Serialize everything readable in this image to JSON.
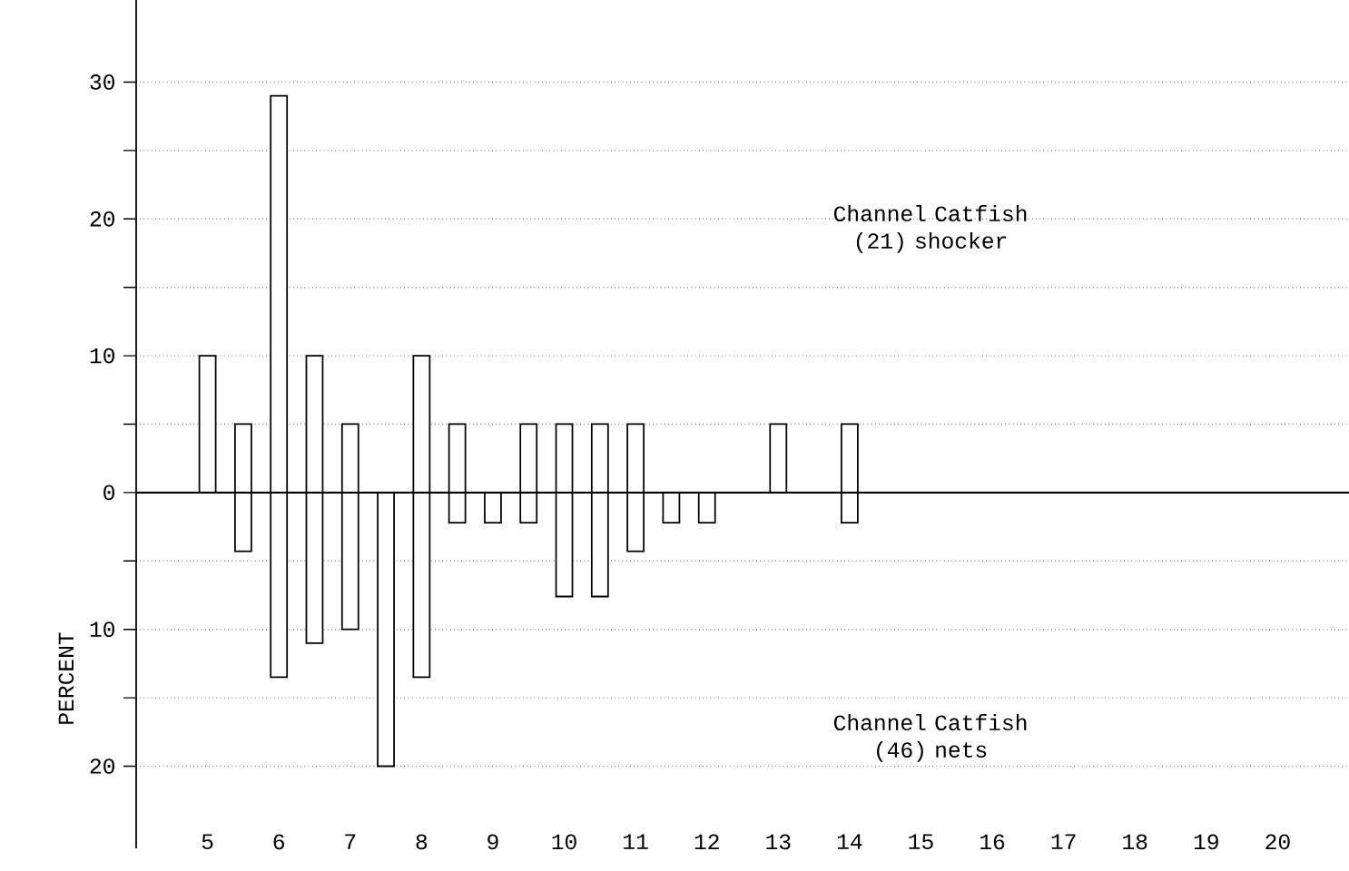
{
  "chart_data": {
    "type": "bar",
    "ylabel": "PERCENT",
    "xlim": [
      4,
      21
    ],
    "xticks": [
      5,
      6,
      7,
      8,
      9,
      10,
      11,
      12,
      13,
      14,
      15,
      16,
      17,
      18,
      19,
      20
    ],
    "ylim": [
      -26,
      36
    ],
    "yticks": [
      {
        "value": -20,
        "label": "20"
      },
      {
        "value": -15,
        "label": null
      },
      {
        "value": -10,
        "label": "10"
      },
      {
        "value": -5,
        "label": null
      },
      0,
      {
        "value": 5,
        "label": null
      },
      10,
      {
        "value": 15,
        "label": null
      },
      20,
      {
        "value": 25,
        "label": null
      },
      30
    ],
    "grid": "y",
    "stacked": true,
    "x": [
      5,
      5.5,
      6,
      6.5,
      7,
      7.5,
      8,
      8.5,
      9,
      9.5,
      10,
      10.5,
      11,
      11.5,
      12,
      13,
      14
    ],
    "series": [
      {
        "name": "Channel Catfish (21) shocker",
        "color": "#000000",
        "values": [
          10,
          5,
          29,
          10,
          5,
          null,
          10,
          5,
          null,
          5,
          5,
          5,
          5,
          null,
          null,
          5,
          5
        ]
      },
      {
        "name": "Channel Catfish (46) nets",
        "color": "#000000",
        "values": [
          null,
          -4.3,
          -13.5,
          -11,
          -10,
          -20,
          -13.5,
          -2.2,
          -2.2,
          -2.2,
          -7.6,
          -7.6,
          -4.3,
          -2.2,
          -2.2,
          null,
          -2.2
        ]
      }
    ]
  }
}
